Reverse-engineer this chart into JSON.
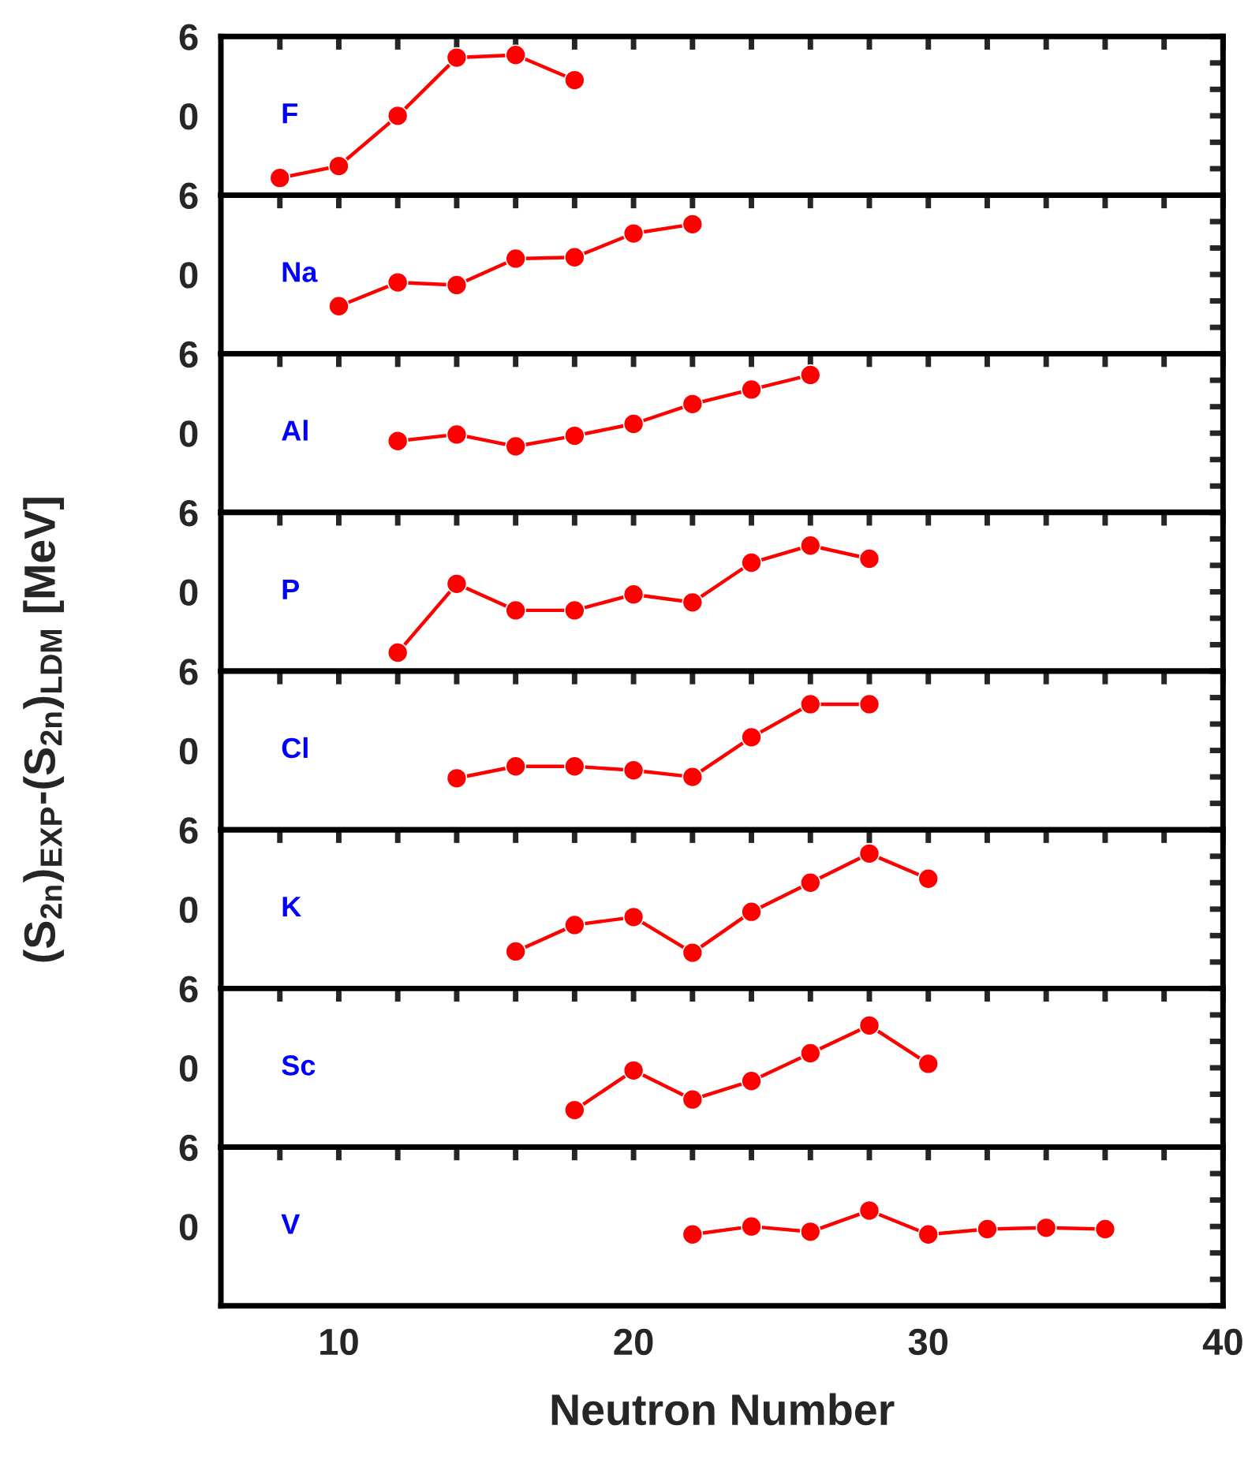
{
  "chart_data": [
    {
      "type": "line",
      "title": null,
      "annotations": [
        "F"
      ],
      "ylabel": "(S$_{2n}$)$_{EXP}$-(S$_{2n}$)$_{LDM}$ [MeV]",
      "x": [
        8,
        10,
        12,
        14,
        16,
        18
      ],
      "series": [
        {
          "color": "#ff0000",
          "values": [
            -4.7,
            -3.8,
            0,
            4.4,
            4.6,
            2.7
          ]
        }
      ],
      "xlim": [
        6,
        40
      ],
      "ylim": [
        -6,
        6
      ],
      "yticks": [
        {
          "value": -6,
          "label": null
        },
        {
          "value": -4,
          "label": null
        },
        {
          "value": -2,
          "label": null
        },
        0,
        {
          "value": 2,
          "label": null
        },
        {
          "value": 4,
          "label": null
        },
        6
      ],
      "xticks": [
        {
          "value": 8,
          "label": null
        },
        10,
        {
          "value": 12,
          "label": null
        },
        {
          "value": 14,
          "label": null
        },
        {
          "value": 16,
          "label": null
        },
        {
          "value": 18,
          "label": null
        },
        20,
        {
          "value": 22,
          "label": null
        },
        {
          "value": 24,
          "label": null
        },
        {
          "value": 26,
          "label": null
        },
        {
          "value": 28,
          "label": null
        },
        30,
        {
          "value": 32,
          "label": null
        },
        {
          "value": 34,
          "label": null
        },
        {
          "value": 36,
          "label": null
        },
        {
          "value": 38,
          "label": null
        },
        40
      ],
      "tick_labels": "y",
      "marker": "circle",
      "line_style": "solid",
      "grid": false,
      "legend": false
    },
    {
      "type": "line",
      "annotations": [
        "Na"
      ],
      "x": [
        10,
        12,
        14,
        16,
        18,
        20,
        22
      ],
      "series": [
        {
          "color": "#ff0000",
          "values": [
            -2.4,
            -0.6,
            -0.8,
            1.2,
            1.3,
            3.1,
            3.8
          ]
        }
      ],
      "xlim": [
        6,
        40
      ],
      "ylim": [
        -6,
        6
      ],
      "yticks": [
        {
          "value": -6,
          "label": null
        },
        {
          "value": -4,
          "label": null
        },
        {
          "value": -2,
          "label": null
        },
        0,
        {
          "value": 2,
          "label": null
        },
        {
          "value": 4,
          "label": null
        },
        6
      ],
      "xticks": [
        {
          "value": 8,
          "label": null
        },
        10,
        {
          "value": 12,
          "label": null
        },
        {
          "value": 14,
          "label": null
        },
        {
          "value": 16,
          "label": null
        },
        {
          "value": 18,
          "label": null
        },
        20,
        {
          "value": 22,
          "label": null
        },
        {
          "value": 24,
          "label": null
        },
        {
          "value": 26,
          "label": null
        },
        {
          "value": 28,
          "label": null
        },
        30,
        {
          "value": 32,
          "label": null
        },
        {
          "value": 34,
          "label": null
        },
        {
          "value": 36,
          "label": null
        },
        {
          "value": 38,
          "label": null
        },
        40
      ],
      "tick_labels": "y",
      "marker": "circle",
      "line_style": "solid",
      "grid": false,
      "legend": false
    },
    {
      "type": "line",
      "annotations": [
        "Al"
      ],
      "x": [
        12,
        14,
        16,
        18,
        20,
        22,
        24,
        26
      ],
      "series": [
        {
          "color": "#ff0000",
          "values": [
            -0.6,
            -0.1,
            -1.0,
            -0.2,
            0.7,
            2.2,
            3.3,
            4.4
          ]
        }
      ],
      "xlim": [
        6,
        40
      ],
      "ylim": [
        -6,
        6
      ],
      "yticks": [
        {
          "value": -6,
          "label": null
        },
        {
          "value": -4,
          "label": null
        },
        {
          "value": -2,
          "label": null
        },
        0,
        {
          "value": 2,
          "label": null
        },
        {
          "value": 4,
          "label": null
        },
        6
      ],
      "xticks": [
        {
          "value": 8,
          "label": null
        },
        10,
        {
          "value": 12,
          "label": null
        },
        {
          "value": 14,
          "label": null
        },
        {
          "value": 16,
          "label": null
        },
        {
          "value": 18,
          "label": null
        },
        20,
        {
          "value": 22,
          "label": null
        },
        {
          "value": 24,
          "label": null
        },
        {
          "value": 26,
          "label": null
        },
        {
          "value": 28,
          "label": null
        },
        30,
        {
          "value": 32,
          "label": null
        },
        {
          "value": 34,
          "label": null
        },
        {
          "value": 36,
          "label": null
        },
        {
          "value": 38,
          "label": null
        },
        40
      ],
      "tick_labels": "y",
      "marker": "circle",
      "line_style": "solid",
      "grid": false,
      "legend": false
    },
    {
      "type": "line",
      "annotations": [
        "P"
      ],
      "x": [
        12,
        14,
        16,
        18,
        20,
        22,
        24,
        26,
        28
      ],
      "series": [
        {
          "color": "#ff0000",
          "values": [
            -4.6,
            0.6,
            -1.4,
            -1.4,
            -0.2,
            -0.8,
            2.2,
            3.5,
            2.5
          ]
        }
      ],
      "xlim": [
        6,
        40
      ],
      "ylim": [
        -6,
        6
      ],
      "yticks": [
        {
          "value": -6,
          "label": null
        },
        {
          "value": -4,
          "label": null
        },
        {
          "value": -2,
          "label": null
        },
        0,
        {
          "value": 2,
          "label": null
        },
        {
          "value": 4,
          "label": null
        },
        6
      ],
      "xticks": [
        {
          "value": 8,
          "label": null
        },
        10,
        {
          "value": 12,
          "label": null
        },
        {
          "value": 14,
          "label": null
        },
        {
          "value": 16,
          "label": null
        },
        {
          "value": 18,
          "label": null
        },
        20,
        {
          "value": 22,
          "label": null
        },
        {
          "value": 24,
          "label": null
        },
        {
          "value": 26,
          "label": null
        },
        {
          "value": 28,
          "label": null
        },
        30,
        {
          "value": 32,
          "label": null
        },
        {
          "value": 34,
          "label": null
        },
        {
          "value": 36,
          "label": null
        },
        {
          "value": 38,
          "label": null
        },
        40
      ],
      "tick_labels": "y",
      "marker": "circle",
      "line_style": "solid",
      "grid": false,
      "legend": false
    },
    {
      "type": "line",
      "annotations": [
        "Cl"
      ],
      "x": [
        14,
        16,
        18,
        20,
        22,
        24,
        26,
        28
      ],
      "series": [
        {
          "color": "#ff0000",
          "values": [
            -2.1,
            -1.2,
            -1.2,
            -1.5,
            -2.0,
            1.0,
            3.5,
            3.5
          ]
        }
      ],
      "xlim": [
        6,
        40
      ],
      "ylim": [
        -6,
        6
      ],
      "yticks": [
        {
          "value": -6,
          "label": null
        },
        {
          "value": -4,
          "label": null
        },
        {
          "value": -2,
          "label": null
        },
        0,
        {
          "value": 2,
          "label": null
        },
        {
          "value": 4,
          "label": null
        },
        6
      ],
      "xticks": [
        {
          "value": 8,
          "label": null
        },
        10,
        {
          "value": 12,
          "label": null
        },
        {
          "value": 14,
          "label": null
        },
        {
          "value": 16,
          "label": null
        },
        {
          "value": 18,
          "label": null
        },
        20,
        {
          "value": 22,
          "label": null
        },
        {
          "value": 24,
          "label": null
        },
        {
          "value": 26,
          "label": null
        },
        {
          "value": 28,
          "label": null
        },
        30,
        {
          "value": 32,
          "label": null
        },
        {
          "value": 34,
          "label": null
        },
        {
          "value": 36,
          "label": null
        },
        {
          "value": 38,
          "label": null
        },
        40
      ],
      "tick_labels": "y",
      "marker": "circle",
      "line_style": "solid",
      "grid": false,
      "legend": false
    },
    {
      "type": "line",
      "annotations": [
        "K"
      ],
      "x": [
        16,
        18,
        20,
        22,
        24,
        26,
        28,
        30
      ],
      "series": [
        {
          "color": "#ff0000",
          "values": [
            -3.2,
            -1.2,
            -0.6,
            -3.3,
            -0.2,
            2.0,
            4.2,
            2.3
          ]
        }
      ],
      "xlim": [
        6,
        40
      ],
      "ylim": [
        -6,
        6
      ],
      "yticks": [
        {
          "value": -6,
          "label": null
        },
        {
          "value": -4,
          "label": null
        },
        {
          "value": -2,
          "label": null
        },
        0,
        {
          "value": 2,
          "label": null
        },
        {
          "value": 4,
          "label": null
        },
        6
      ],
      "xticks": [
        {
          "value": 8,
          "label": null
        },
        10,
        {
          "value": 12,
          "label": null
        },
        {
          "value": 14,
          "label": null
        },
        {
          "value": 16,
          "label": null
        },
        {
          "value": 18,
          "label": null
        },
        20,
        {
          "value": 22,
          "label": null
        },
        {
          "value": 24,
          "label": null
        },
        {
          "value": 26,
          "label": null
        },
        {
          "value": 28,
          "label": null
        },
        30,
        {
          "value": 32,
          "label": null
        },
        {
          "value": 34,
          "label": null
        },
        {
          "value": 36,
          "label": null
        },
        {
          "value": 38,
          "label": null
        },
        40
      ],
      "tick_labels": "y",
      "marker": "circle",
      "line_style": "solid",
      "grid": false,
      "legend": false
    },
    {
      "type": "line",
      "annotations": [
        "Sc"
      ],
      "x": [
        18,
        20,
        22,
        24,
        26,
        28,
        30
      ],
      "series": [
        {
          "color": "#ff0000",
          "values": [
            -3.2,
            -0.2,
            -2.4,
            -1.0,
            1.1,
            3.2,
            0.3
          ]
        }
      ],
      "xlim": [
        6,
        40
      ],
      "ylim": [
        -6,
        6
      ],
      "yticks": [
        {
          "value": -6,
          "label": null
        },
        {
          "value": -4,
          "label": null
        },
        {
          "value": -2,
          "label": null
        },
        0,
        {
          "value": 2,
          "label": null
        },
        {
          "value": 4,
          "label": null
        },
        6
      ],
      "xticks": [
        {
          "value": 8,
          "label": null
        },
        10,
        {
          "value": 12,
          "label": null
        },
        {
          "value": 14,
          "label": null
        },
        {
          "value": 16,
          "label": null
        },
        {
          "value": 18,
          "label": null
        },
        20,
        {
          "value": 22,
          "label": null
        },
        {
          "value": 24,
          "label": null
        },
        {
          "value": 26,
          "label": null
        },
        {
          "value": 28,
          "label": null
        },
        30,
        {
          "value": 32,
          "label": null
        },
        {
          "value": 34,
          "label": null
        },
        {
          "value": 36,
          "label": null
        },
        {
          "value": 38,
          "label": null
        },
        40
      ],
      "tick_labels": "y",
      "marker": "circle",
      "line_style": "solid",
      "grid": false,
      "legend": false
    },
    {
      "type": "line",
      "annotations": [
        "V"
      ],
      "xlabel": "Neutron Number",
      "x": [
        22,
        24,
        26,
        28,
        30,
        32,
        34,
        36
      ],
      "series": [
        {
          "color": "#ff0000",
          "values": [
            -0.6,
            0.0,
            -0.4,
            1.2,
            -0.6,
            -0.2,
            -0.1,
            -0.2
          ]
        }
      ],
      "xlim": [
        6,
        40
      ],
      "ylim": [
        -6,
        6
      ],
      "yticks": [
        {
          "value": -6,
          "label": null
        },
        {
          "value": -4,
          "label": null
        },
        {
          "value": -2,
          "label": null
        },
        0,
        {
          "value": 2,
          "label": null
        },
        {
          "value": 4,
          "label": null
        },
        6
      ],
      "xticks": [
        {
          "value": 8,
          "label": null
        },
        10,
        {
          "value": 12,
          "label": null
        },
        {
          "value": 14,
          "label": null
        },
        {
          "value": 16,
          "label": null
        },
        {
          "value": 18,
          "label": null
        },
        20,
        {
          "value": 22,
          "label": null
        },
        {
          "value": 24,
          "label": null
        },
        {
          "value": 26,
          "label": null
        },
        {
          "value": 28,
          "label": null
        },
        30,
        {
          "value": 32,
          "label": null
        },
        {
          "value": 34,
          "label": null
        },
        {
          "value": 36,
          "label": null
        },
        {
          "value": 38,
          "label": null
        },
        40
      ],
      "marker": "circle",
      "line_style": "solid",
      "grid": false,
      "legend": false
    }
  ]
}
